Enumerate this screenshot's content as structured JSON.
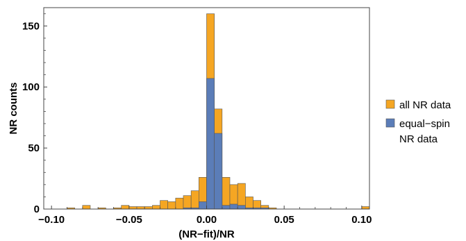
{
  "chart_data": {
    "type": "bar",
    "title": "",
    "xlabel": "(NR−fit)/NR",
    "ylabel": "NR counts",
    "xlim": [
      -0.105,
      0.105
    ],
    "ylim": [
      0,
      165
    ],
    "bin_width": 0.005,
    "x_ticks": [
      -0.1,
      -0.05,
      0.0,
      0.05,
      0.1
    ],
    "x_tick_labels": [
      "−0.10",
      "−0.05",
      "0.00",
      "0.05",
      "0.10"
    ],
    "y_ticks": [
      0,
      50,
      100,
      150
    ],
    "y_tick_labels": [
      "0",
      "50",
      "100",
      "150"
    ],
    "legend_position": "right",
    "series": [
      {
        "name": "all NR data",
        "color": "#F5A623",
        "bins": [
          {
            "x0": -0.09,
            "count": 1
          },
          {
            "x0": -0.08,
            "count": 3
          },
          {
            "x0": -0.07,
            "count": 1
          },
          {
            "x0": -0.06,
            "count": 1
          },
          {
            "x0": -0.055,
            "count": 3
          },
          {
            "x0": -0.05,
            "count": 2
          },
          {
            "x0": -0.045,
            "count": 2
          },
          {
            "x0": -0.04,
            "count": 2
          },
          {
            "x0": -0.035,
            "count": 3
          },
          {
            "x0": -0.03,
            "count": 7
          },
          {
            "x0": -0.025,
            "count": 6
          },
          {
            "x0": -0.02,
            "count": 9
          },
          {
            "x0": -0.015,
            "count": 11
          },
          {
            "x0": -0.01,
            "count": 15
          },
          {
            "x0": -0.005,
            "count": 26
          },
          {
            "x0": 0.0,
            "count": 160
          },
          {
            "x0": 0.005,
            "count": 82
          },
          {
            "x0": 0.01,
            "count": 26
          },
          {
            "x0": 0.015,
            "count": 20
          },
          {
            "x0": 0.02,
            "count": 21
          },
          {
            "x0": 0.025,
            "count": 10
          },
          {
            "x0": 0.03,
            "count": 7
          },
          {
            "x0": 0.035,
            "count": 3
          },
          {
            "x0": 0.04,
            "count": 1
          },
          {
            "x0": 0.1,
            "count": 2
          }
        ]
      },
      {
        "name": "equal−spin NR data",
        "color": "#5B7DB8",
        "bins": [
          {
            "x0": -0.015,
            "count": 1
          },
          {
            "x0": -0.01,
            "count": 1
          },
          {
            "x0": -0.005,
            "count": 6
          },
          {
            "x0": 0.0,
            "count": 107
          },
          {
            "x0": 0.005,
            "count": 62
          },
          {
            "x0": 0.01,
            "count": 3
          },
          {
            "x0": 0.015,
            "count": 4
          },
          {
            "x0": 0.02,
            "count": 3
          },
          {
            "x0": 0.025,
            "count": 1
          },
          {
            "x0": 0.03,
            "count": 1
          },
          {
            "x0": 0.035,
            "count": 1
          }
        ]
      }
    ],
    "legend": [
      {
        "label_lines": [
          "all NR data"
        ],
        "color": "#F5A623"
      },
      {
        "label_lines": [
          "equal−spin",
          "NR data"
        ],
        "color": "#5B7DB8"
      }
    ]
  }
}
